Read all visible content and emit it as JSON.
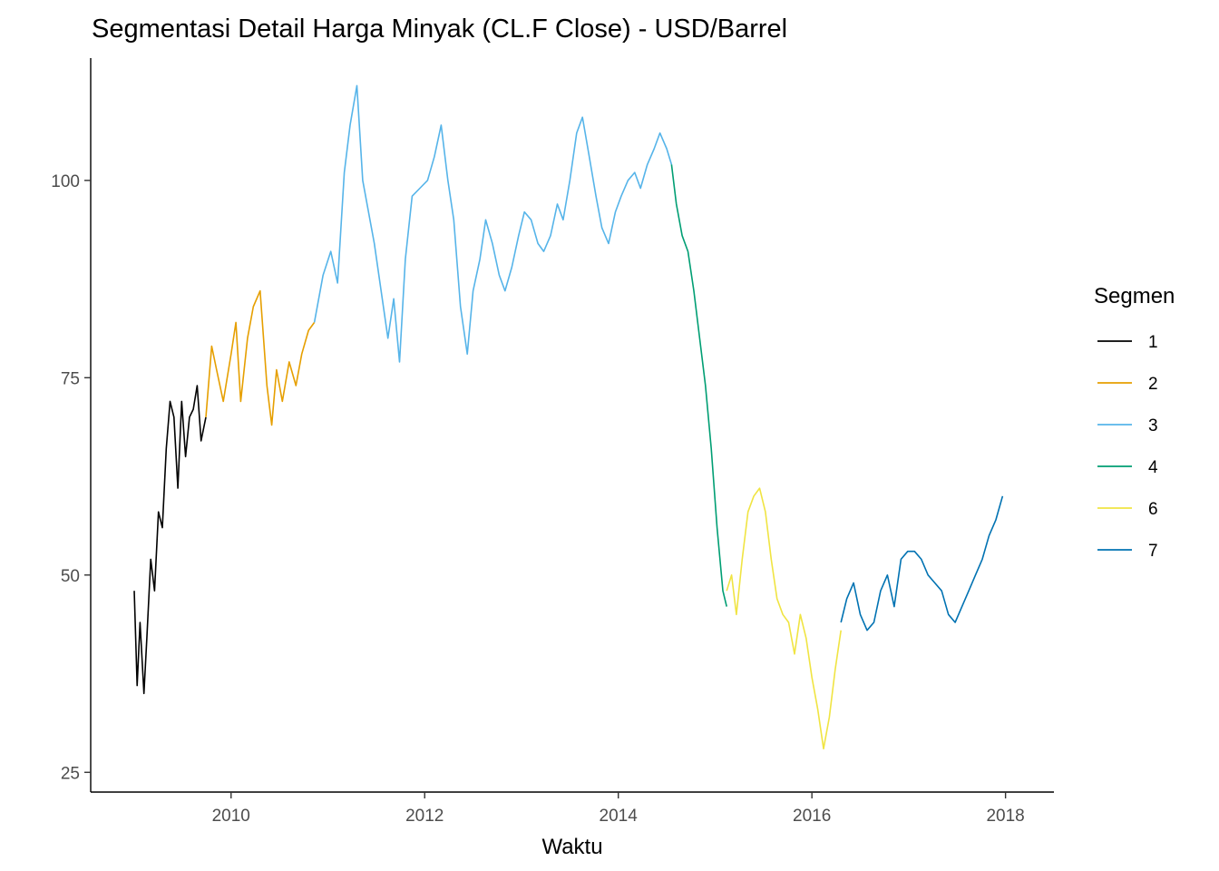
{
  "chart_data": {
    "type": "line",
    "title": "Segmentasi Detail Harga Minyak (CL.F Close) - USD/Barrel",
    "xlabel": "Waktu",
    "ylabel": "",
    "xlim": [
      2008.55,
      2018.5
    ],
    "ylim": [
      22.5,
      115.5
    ],
    "x_ticks": [
      2010,
      2012,
      2014,
      2016,
      2018
    ],
    "x_tick_labels": [
      "2010",
      "2012",
      "2014",
      "2016",
      "2018"
    ],
    "y_ticks": [
      25,
      50,
      75,
      100
    ],
    "y_tick_labels": [
      "25",
      "50",
      "75",
      "100"
    ],
    "grid": false,
    "legend": {
      "title": "Segmen",
      "position": "right"
    },
    "series": [
      {
        "name": "1",
        "color": "#000000",
        "x": [
          2009.0,
          2009.03,
          2009.06,
          2009.1,
          2009.13,
          2009.17,
          2009.21,
          2009.25,
          2009.29,
          2009.33,
          2009.37,
          2009.41,
          2009.45,
          2009.49,
          2009.53,
          2009.57,
          2009.61,
          2009.65,
          2009.69,
          2009.74
        ],
        "y": [
          48,
          36,
          44,
          35,
          42,
          52,
          48,
          58,
          56,
          66,
          72,
          70,
          61,
          72,
          65,
          70,
          71,
          74,
          67,
          70
        ]
      },
      {
        "name": "2",
        "color": "#E69F00",
        "x": [
          2009.74,
          2009.8,
          2009.85,
          2009.92,
          2010.0,
          2010.05,
          2010.1,
          2010.17,
          2010.23,
          2010.3,
          2010.37,
          2010.42,
          2010.47,
          2010.53,
          2010.6,
          2010.67,
          2010.73,
          2010.8,
          2010.86
        ],
        "y": [
          70,
          79,
          76,
          72,
          78,
          82,
          72,
          80,
          84,
          86,
          74,
          69,
          76,
          72,
          77,
          74,
          78,
          81,
          82
        ]
      },
      {
        "name": "3",
        "color": "#56B4E9",
        "x": [
          2010.86,
          2010.95,
          2011.03,
          2011.1,
          2011.17,
          2011.23,
          2011.3,
          2011.36,
          2011.42,
          2011.48,
          2011.55,
          2011.62,
          2011.68,
          2011.74,
          2011.8,
          2011.87,
          2011.95,
          2012.03,
          2012.1,
          2012.17,
          2012.24,
          2012.3,
          2012.37,
          2012.44,
          2012.5,
          2012.57,
          2012.63,
          2012.7,
          2012.77,
          2012.83,
          2012.9,
          2012.97,
          2013.03,
          2013.1,
          2013.17,
          2013.23,
          2013.3,
          2013.37,
          2013.43,
          2013.5,
          2013.57,
          2013.63,
          2013.7,
          2013.77,
          2013.83,
          2013.9,
          2013.97,
          2014.03,
          2014.1,
          2014.17,
          2014.23,
          2014.3,
          2014.37,
          2014.43,
          2014.5,
          2014.55
        ],
        "y": [
          82,
          88,
          91,
          87,
          101,
          107,
          112,
          100,
          96,
          92,
          86,
          80,
          85,
          77,
          90,
          98,
          99,
          100,
          103,
          107,
          100,
          95,
          84,
          78,
          86,
          90,
          95,
          92,
          88,
          86,
          89,
          93,
          96,
          95,
          92,
          91,
          93,
          97,
          95,
          100,
          106,
          108,
          103,
          98,
          94,
          92,
          96,
          98,
          100,
          101,
          99,
          102,
          104,
          106,
          104,
          102
        ]
      },
      {
        "name": "4",
        "color": "#009E73",
        "x": [
          2014.55,
          2014.6,
          2014.66,
          2014.72,
          2014.78,
          2014.84,
          2014.9,
          2014.96,
          2015.02,
          2015.08,
          2015.12
        ],
        "y": [
          102,
          97,
          93,
          91,
          86,
          80,
          74,
          66,
          56,
          48,
          46
        ]
      },
      {
        "name": "6",
        "color": "#F0E442",
        "x": [
          2015.12,
          2015.17,
          2015.22,
          2015.28,
          2015.34,
          2015.4,
          2015.46,
          2015.52,
          2015.58,
          2015.64,
          2015.7,
          2015.76,
          2015.82,
          2015.88,
          2015.94,
          2016.0,
          2016.06,
          2016.12,
          2016.18,
          2016.24,
          2016.3
        ],
        "y": [
          48,
          50,
          45,
          52,
          58,
          60,
          61,
          58,
          52,
          47,
          45,
          44,
          40,
          45,
          42,
          37,
          33,
          28,
          32,
          38,
          43
        ]
      },
      {
        "name": "7",
        "color": "#0072B2",
        "x": [
          2016.3,
          2016.36,
          2016.43,
          2016.5,
          2016.57,
          2016.64,
          2016.71,
          2016.78,
          2016.85,
          2016.92,
          2016.99,
          2017.06,
          2017.13,
          2017.2,
          2017.27,
          2017.34,
          2017.41,
          2017.48,
          2017.55,
          2017.62,
          2017.69,
          2017.76,
          2017.83,
          2017.9,
          2017.97
        ],
        "y": [
          44,
          47,
          49,
          45,
          43,
          44,
          48,
          50,
          46,
          52,
          53,
          53,
          52,
          50,
          49,
          48,
          45,
          44,
          46,
          48,
          50,
          52,
          55,
          57,
          60
        ]
      }
    ]
  }
}
